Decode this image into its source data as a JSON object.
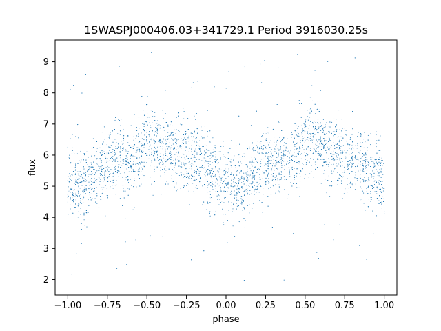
{
  "chart_data": {
    "type": "scatter",
    "title": "1SWASPJ000406.03+341729.1 Period 3916030.25s",
    "xlabel": "phase",
    "ylabel": "flux",
    "xlim": [
      -1.08,
      1.08
    ],
    "ylim": [
      1.5,
      9.7
    ],
    "xticks": [
      -1.0,
      -0.75,
      -0.5,
      -0.25,
      0.0,
      0.25,
      0.5,
      0.75,
      1.0
    ],
    "xtick_labels": [
      "−1.00",
      "−0.75",
      "−0.50",
      "−0.25",
      "0.00",
      "0.25",
      "0.50",
      "0.75",
      "1.00"
    ],
    "yticks": [
      2,
      3,
      4,
      5,
      6,
      7,
      8,
      9
    ],
    "ytick_labels": [
      "2",
      "3",
      "4",
      "5",
      "6",
      "7",
      "8",
      "9"
    ],
    "grid": false,
    "marker_color": "#1f77b4",
    "series": [
      {
        "x": [
          -1.0,
          -0.9,
          -0.8,
          -0.7,
          -0.6,
          -0.5,
          -0.4,
          -0.3,
          -0.2,
          -0.1,
          0.0,
          0.1,
          0.2,
          0.3,
          0.4,
          0.5,
          0.6,
          0.7,
          0.8,
          0.9,
          1.0
        ],
        "y": [
          5.1,
          5.0,
          5.5,
          5.9,
          5.7,
          6.6,
          6.3,
          6.0,
          5.9,
          5.5,
          5.1,
          5.0,
          5.5,
          5.9,
          5.7,
          6.6,
          6.3,
          6.0,
          5.9,
          5.5,
          5.1
        ]
      }
    ]
  }
}
